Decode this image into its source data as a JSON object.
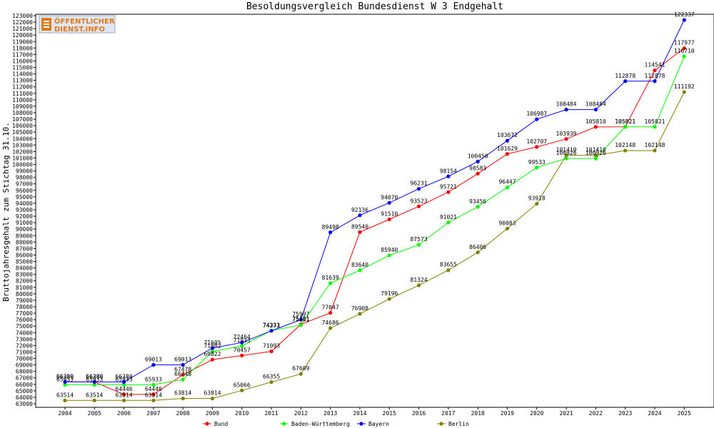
{
  "chart_data": {
    "type": "line",
    "title": "Besoldungsvergleich Bundesdienst W 3 Endgehalt",
    "xlabel": "",
    "ylabel": "Bruttojahresgehalt zum Stichtag 31.10.",
    "x": [
      "2004",
      "2005",
      "2006",
      "2007",
      "2008",
      "2009",
      "2010",
      "2011",
      "2012",
      "2013",
      "2014",
      "2015",
      "2016",
      "2017",
      "2018",
      "2019",
      "2020",
      "2021",
      "2022",
      "2023",
      "2024",
      "2025"
    ],
    "ylim": [
      63000,
      123000
    ],
    "ytick_step": 1000,
    "grid": false,
    "legend_position": "bottom",
    "series": [
      {
        "name": "Bund",
        "color": "#ff0000",
        "values": [
          66380,
          66380,
          64446,
          64446,
          67478,
          69822,
          70457,
          71093,
          75281,
          77047,
          89540,
          91510,
          93523,
          95721,
          98583,
          101629,
          102707,
          103939,
          105810,
          105821,
          114541,
          117977
        ]
      },
      {
        "name": "Baden-Württemberg",
        "color": "#00ff00",
        "values": [
          65933,
          65933,
          65933,
          65933,
          66748,
          71082,
          71933,
          74331,
          75161,
          81639,
          83640,
          85940,
          87573,
          91021,
          93456,
          96447,
          99533,
          100926,
          100926,
          105821,
          105821,
          116710
        ]
      },
      {
        "name": "Bayern",
        "color": "#0000ff",
        "values": [
          66380,
          66380,
          66380,
          69013,
          69013,
          71605,
          72464,
          74273,
          75997,
          89498,
          92136,
          94070,
          96231,
          98154,
          100450,
          103672,
          106987,
          108484,
          108484,
          112878,
          112878,
          122337
        ]
      },
      {
        "name": "Berlin",
        "color": "#808000",
        "values": [
          63514,
          63514,
          63514,
          63514,
          63814,
          63814,
          65066,
          66355,
          67609,
          74686,
          76908,
          79196,
          81324,
          83655,
          86406,
          90083,
          93918,
          101410,
          101410,
          102148,
          102148,
          111192
        ]
      }
    ]
  },
  "logo": {
    "line1": "ÖFFENTLICHER",
    "line2": "DIENST.INFO"
  }
}
